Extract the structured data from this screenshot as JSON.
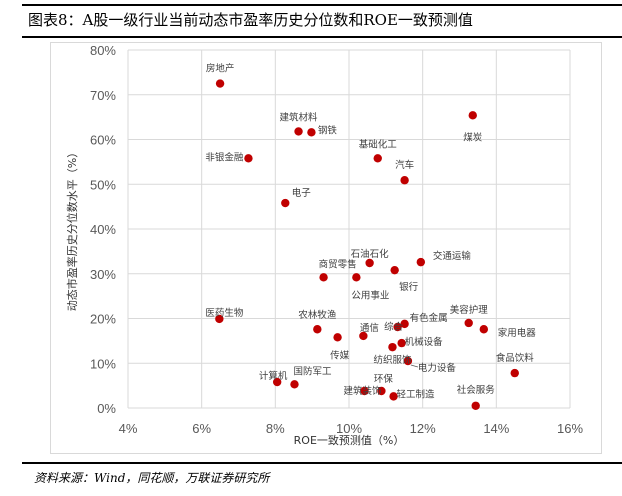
{
  "header": {
    "title": "图表8：A股一级行业当前动态市盈率历史分位数和ROE一致预测值"
  },
  "footer": {
    "source": "资料来源：Wind，同花顺，万联证券研究所"
  },
  "colors": {
    "point": "#c00000",
    "grid": "#d9d9d9"
  },
  "chart_data": {
    "type": "scatter",
    "title": "",
    "xlabel": "ROE一致预测值（%）",
    "ylabel": "动态市盈率历史分位数水平（%）",
    "xlim": [
      4,
      16
    ],
    "ylim": [
      0,
      80
    ],
    "xticks": [
      "4%",
      "6%",
      "8%",
      "10%",
      "12%",
      "14%",
      "16%"
    ],
    "yticks": [
      "0%",
      "10%",
      "20%",
      "30%",
      "40%",
      "50%",
      "60%",
      "70%",
      "80%"
    ],
    "grid": true,
    "points": [
      {
        "name": "房地产",
        "x": 6.5,
        "y": 72.5
      },
      {
        "name": "建筑材料",
        "x": 8.63,
        "y": 61.8
      },
      {
        "name": "钢铁",
        "x": 8.98,
        "y": 61.6
      },
      {
        "name": "非银金融",
        "x": 7.27,
        "y": 55.8
      },
      {
        "name": "基础化工",
        "x": 10.78,
        "y": 55.8
      },
      {
        "name": "汽车",
        "x": 11.51,
        "y": 50.9
      },
      {
        "name": "煤炭",
        "x": 13.36,
        "y": 65.4
      },
      {
        "name": "电子",
        "x": 8.27,
        "y": 45.8
      },
      {
        "name": "商贸零售",
        "x": 9.31,
        "y": 29.2
      },
      {
        "name": "石油石化",
        "x": 10.56,
        "y": 32.4
      },
      {
        "name": "交通运输",
        "x": 11.95,
        "y": 32.6
      },
      {
        "name": "公用事业",
        "x": 10.2,
        "y": 29.2
      },
      {
        "name": "银行",
        "x": 11.24,
        "y": 30.8
      },
      {
        "name": "医药生物",
        "x": 6.48,
        "y": 19.9
      },
      {
        "name": "农林牧渔",
        "x": 9.14,
        "y": 17.6
      },
      {
        "name": "传媒",
        "x": 9.69,
        "y": 15.8
      },
      {
        "name": "通信",
        "x": 10.39,
        "y": 16.1
      },
      {
        "name": "综合",
        "x": 11.32,
        "y": 18.1
      },
      {
        "name": "有色金属",
        "x": 11.51,
        "y": 18.8
      },
      {
        "name": "机械设备",
        "x": 11.43,
        "y": 14.5
      },
      {
        "name": "纺织服饰",
        "x": 11.18,
        "y": 13.6
      },
      {
        "name": "电力设备",
        "x": 11.6,
        "y": 10.5
      },
      {
        "name": "美容护理",
        "x": 13.25,
        "y": 19.0
      },
      {
        "name": "家用电器",
        "x": 13.66,
        "y": 17.6
      },
      {
        "name": "食品饮料",
        "x": 14.5,
        "y": 7.8
      },
      {
        "name": "计算机",
        "x": 8.05,
        "y": 5.8
      },
      {
        "name": "国防军工",
        "x": 8.52,
        "y": 5.3
      },
      {
        "name": "建筑装饰",
        "x": 10.42,
        "y": 3.8
      },
      {
        "name": "环保",
        "x": 10.88,
        "y": 3.8
      },
      {
        "name": "轻工制造",
        "x": 11.21,
        "y": 2.6
      },
      {
        "name": "社会服务",
        "x": 13.44,
        "y": 0.5
      }
    ]
  }
}
